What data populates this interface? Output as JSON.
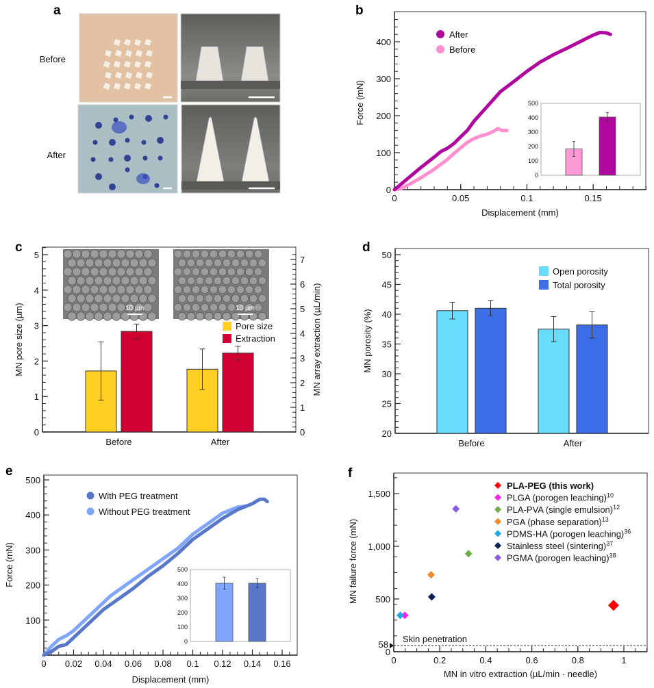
{
  "figure": {
    "panels": {
      "a": {
        "letter": "a",
        "row_labels": [
          "Before",
          "After"
        ],
        "images": [
          {
            "row": "Before",
            "kind": "skin-photo",
            "colors": {
              "bg": "#e3c2a4",
              "spot": "#f6efe5"
            }
          },
          {
            "row": "Before",
            "kind": "microneedle-photo",
            "colors": {
              "bg": "#8d8d88",
              "needle": "#e6e4dc"
            }
          },
          {
            "row": "After",
            "kind": "skin-photo-stained",
            "colors": {
              "bg": "#a9bfc4",
              "spot": "#1d2a8a"
            }
          },
          {
            "row": "After",
            "kind": "microneedle-photo",
            "colors": {
              "bg": "#7e7e7a",
              "needle": "#f1efe6"
            }
          }
        ]
      },
      "b": {
        "letter": "b"
      },
      "c": {
        "letter": "c",
        "sem_scale_labels": [
          "10 µm",
          "10 µm"
        ]
      },
      "d": {
        "letter": "d"
      },
      "e": {
        "letter": "e"
      },
      "f": {
        "letter": "f"
      }
    }
  },
  "chart_data": [
    {
      "id": "b",
      "type": "line",
      "xlabel": "Displacement (mm)",
      "ylabel": "Force (mN)",
      "xlim": [
        0,
        0.19
      ],
      "ylim": [
        0,
        480
      ],
      "xticks": [
        0,
        0.05,
        0.1,
        0.15
      ],
      "xtick_labels": [
        "0",
        "0.05",
        "0.1",
        "0.15"
      ],
      "yticks": [
        0,
        100,
        200,
        300,
        400
      ],
      "ytick_labels": [
        "0",
        "100",
        "200",
        "300",
        "400"
      ],
      "legend_position": "top-left",
      "series": [
        {
          "name": "After",
          "color": "#b0089f",
          "x": [
            0,
            0.005,
            0.01,
            0.02,
            0.03,
            0.035,
            0.04,
            0.045,
            0.05,
            0.055,
            0.06,
            0.07,
            0.08,
            0.09,
            0.1,
            0.11,
            0.12,
            0.13,
            0.14,
            0.15,
            0.155,
            0.16,
            0.163
          ],
          "y": [
            0,
            15,
            30,
            60,
            88,
            103,
            112,
            125,
            143,
            160,
            185,
            225,
            265,
            292,
            320,
            345,
            365,
            382,
            400,
            418,
            425,
            424,
            420
          ]
        },
        {
          "name": "Before",
          "color": "#ff8fcf",
          "x": [
            0,
            0.005,
            0.01,
            0.02,
            0.03,
            0.04,
            0.045,
            0.05,
            0.055,
            0.06,
            0.065,
            0.07,
            0.075,
            0.078,
            0.081,
            0.085
          ],
          "y": [
            0,
            3,
            12,
            32,
            55,
            82,
            98,
            113,
            128,
            138,
            145,
            150,
            158,
            165,
            160,
            160
          ]
        }
      ],
      "inset": {
        "type": "bar",
        "ylim": [
          0,
          500
        ],
        "yticks": [
          0,
          100,
          200,
          300,
          400,
          500
        ],
        "ytick_labels": [
          "0",
          "100",
          "200",
          "300",
          "400",
          "500"
        ],
        "categories": [
          "Before",
          "After"
        ],
        "values": [
          183,
          405
        ],
        "errors": [
          52,
          30
        ],
        "colors": [
          "#ff99d4",
          "#b0089f"
        ]
      }
    },
    {
      "id": "c",
      "type": "bar",
      "xlabel": "",
      "ylabel": "MN pore size (µm)",
      "ylabel_right": "MN array extraction (µL/min)",
      "categories": [
        "Before",
        "After"
      ],
      "ylim": [
        0,
        5.2
      ],
      "ylim_right": [
        0,
        7.28
      ],
      "yticks": [
        0,
        1,
        2,
        3,
        4,
        5
      ],
      "ytick_labels": [
        "0",
        "1",
        "2",
        "3",
        "4",
        "5"
      ],
      "yticks_right": [
        0,
        1,
        2,
        3,
        4,
        5,
        6,
        7
      ],
      "ytick_labels_right": [
        "0",
        "1",
        "2",
        "3",
        "4",
        "5",
        "6",
        "7"
      ],
      "legend_position": "center-right",
      "series": [
        {
          "name": "Pore size",
          "axis": "left",
          "color": "#fdd023",
          "values": [
            1.72,
            1.77
          ],
          "errors": [
            0.82,
            0.57
          ]
        },
        {
          "name": "Extraction",
          "axis": "right",
          "color": "#d10032",
          "values": [
            4.08,
            3.2
          ],
          "errors": [
            0.3,
            0.28
          ]
        }
      ]
    },
    {
      "id": "d",
      "type": "bar",
      "xlabel": "",
      "ylabel": "MN porosity (%)",
      "categories": [
        "Before",
        "After"
      ],
      "ylim": [
        20,
        51
      ],
      "yticks": [
        20,
        25,
        30,
        35,
        40,
        45,
        50
      ],
      "ytick_labels": [
        "20",
        "25",
        "30",
        "35",
        "40",
        "45",
        "50"
      ],
      "legend_position": "top-right",
      "series": [
        {
          "name": "Open porosity",
          "color": "#67dcfd",
          "values": [
            40.6,
            37.5
          ],
          "errors": [
            1.4,
            2.1
          ]
        },
        {
          "name": "Total porosity",
          "color": "#3d6ee8",
          "values": [
            41.0,
            38.2
          ],
          "errors": [
            1.3,
            2.2
          ]
        }
      ]
    },
    {
      "id": "e",
      "type": "line",
      "xlabel": "Displacement (mm)",
      "ylabel": "Force (mN)",
      "xlim": [
        0,
        0.17
      ],
      "ylim": [
        0,
        520
      ],
      "xticks": [
        0,
        0.02,
        0.04,
        0.06,
        0.08,
        0.1,
        0.12,
        0.14,
        0.16
      ],
      "xtick_labels": [
        "0",
        "0.02",
        "0.04",
        "0.06",
        "0.08",
        "0.1",
        "0.12",
        "0.14",
        "0.16"
      ],
      "yticks": [
        100,
        200,
        300,
        400,
        500
      ],
      "ytick_labels": [
        "100",
        "200",
        "300",
        "400",
        "500"
      ],
      "legend_position": "top-left",
      "series": [
        {
          "name": "With PEG treatment",
          "color": "#5877c8",
          "x": [
            0,
            0.005,
            0.01,
            0.015,
            0.02,
            0.03,
            0.04,
            0.05,
            0.06,
            0.07,
            0.08,
            0.09,
            0.1,
            0.11,
            0.12,
            0.13,
            0.14,
            0.145,
            0.148,
            0.15
          ],
          "y": [
            0,
            10,
            25,
            30,
            50,
            90,
            130,
            160,
            190,
            225,
            255,
            290,
            330,
            360,
            390,
            415,
            432,
            445,
            445,
            438
          ]
        },
        {
          "name": "Without PEG treatment",
          "color": "#80a6fb",
          "x": [
            0,
            0.005,
            0.01,
            0.015,
            0.02,
            0.03,
            0.04,
            0.045,
            0.05,
            0.06,
            0.07,
            0.08,
            0.09,
            0.1,
            0.11,
            0.12,
            0.13,
            0.135
          ],
          "y": [
            0,
            25,
            45,
            55,
            70,
            110,
            150,
            170,
            185,
            215,
            245,
            275,
            305,
            345,
            375,
            405,
            422,
            425
          ]
        }
      ],
      "inset": {
        "type": "bar",
        "ylim": [
          0,
          500
        ],
        "yticks": [
          0,
          100,
          200,
          300,
          400,
          500
        ],
        "ytick_labels": [
          "0",
          "100",
          "200",
          "300",
          "400",
          "500"
        ],
        "categories": [
          "Without PEG treatment",
          "With PEG treatment"
        ],
        "values": [
          405,
          405
        ],
        "errors": [
          42,
          32
        ],
        "colors": [
          "#80a6fb",
          "#5877c8"
        ]
      }
    },
    {
      "id": "f",
      "type": "scatter",
      "xlabel": "MN in vitro extraction (µL/min · needle)",
      "ylabel": "MN failure force (mN)",
      "xlim": [
        0,
        1.12
      ],
      "ylim": [
        0,
        1700
      ],
      "xticks": [
        0,
        0.2,
        0.4,
        0.6,
        0.8,
        1
      ],
      "xtick_labels": [
        "0",
        "0.2",
        "0.4",
        "0.6",
        "0.8",
        "1"
      ],
      "yticks": [
        0,
        500,
        1000,
        1500
      ],
      "ytick_labels": [
        "0",
        "500",
        "1,000",
        "1,500"
      ],
      "extra_ytick": {
        "value": 58,
        "label": "58"
      },
      "reference_line": {
        "y": 58,
        "label": "Skin penetration",
        "style": "dashed"
      },
      "legend_position": "top-right",
      "series": [
        {
          "name": "PLA-PEG (this work)",
          "ref": "",
          "bold": true,
          "color": "#ff0000",
          "x": [
            0.955
          ],
          "y": [
            440
          ],
          "size": "large"
        },
        {
          "name": "PLGA (porogen leaching)",
          "ref": "10",
          "color": "#ff22ee",
          "x": [
            0.048
          ],
          "y": [
            345
          ]
        },
        {
          "name": "PLA-PVA (single emulsion)",
          "ref": "12",
          "color": "#6fae4a",
          "x": [
            0.325
          ],
          "y": [
            930
          ]
        },
        {
          "name": "PGA (phase separation)",
          "ref": "13",
          "color": "#f28a2c",
          "x": [
            0.162
          ],
          "y": [
            730
          ]
        },
        {
          "name": "PDMS-HA (porogen leaching)",
          "ref": "36",
          "color": "#1ea9e6",
          "x": [
            0.028
          ],
          "y": [
            345
          ]
        },
        {
          "name": "Stainless steel (sintering)",
          "ref": "37",
          "color": "#0d1f57",
          "x": [
            0.165
          ],
          "y": [
            520
          ]
        },
        {
          "name": "PGMA (porogen leaching)",
          "ref": "38",
          "color": "#8a5ae6",
          "x": [
            0.27
          ],
          "y": [
            1355
          ]
        }
      ]
    }
  ]
}
